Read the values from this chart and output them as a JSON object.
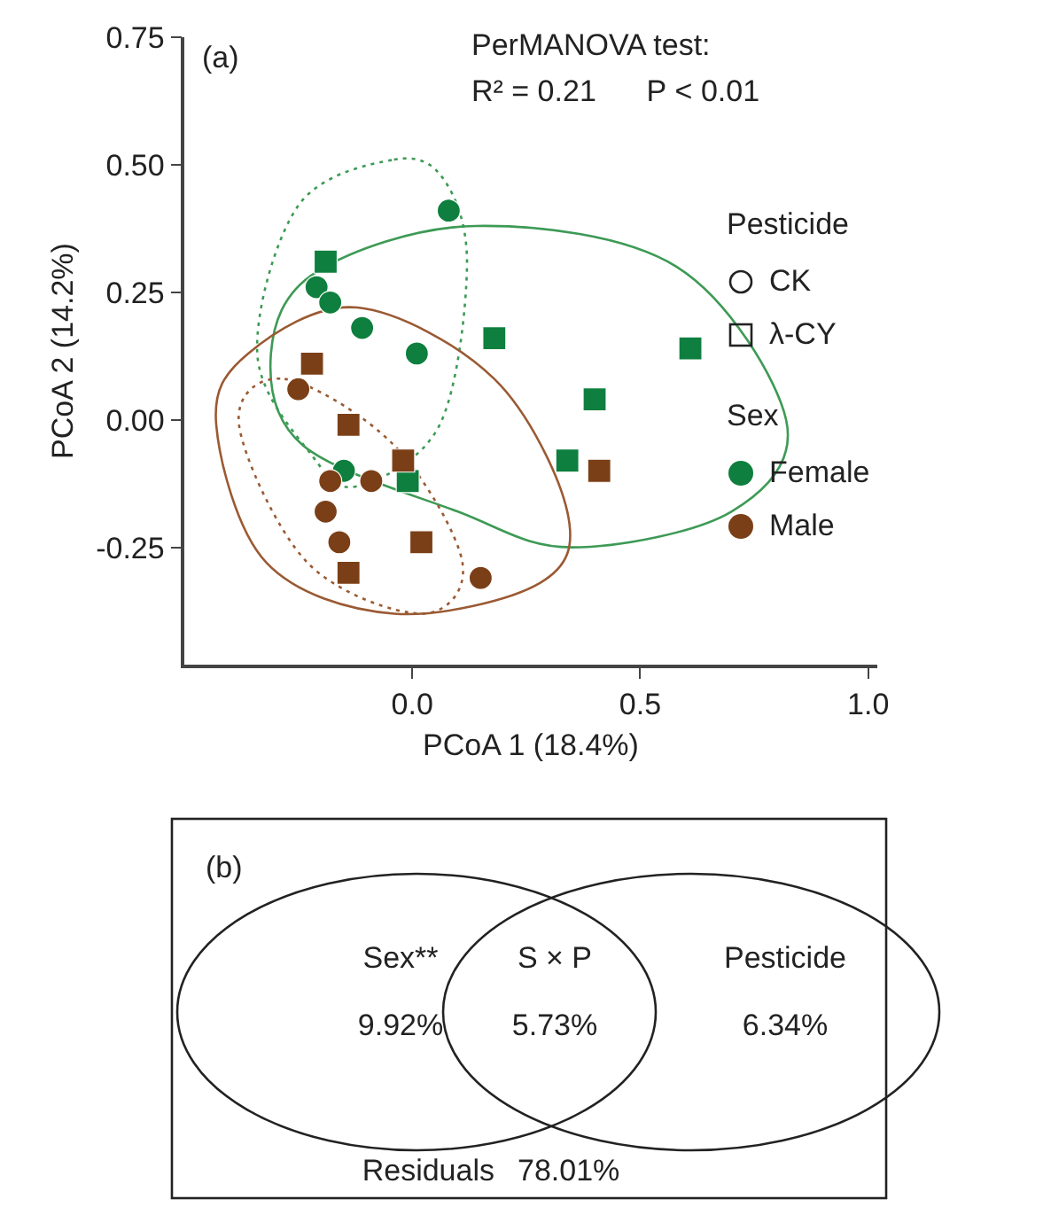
{
  "chart_data": [
    {
      "type": "scatter",
      "title": "(a)",
      "xlabel": "PCoA 1 (18.4%)",
      "ylabel": "PCoA 2 (14.2%)",
      "annotations": [
        "PerMANOVA test:",
        "R² = 0.21      P < 0.01",
        "Pesticide",
        "CK",
        "λ-CY",
        "Sex"
      ],
      "xlim": [
        -0.5,
        1.02
      ],
      "xticks": [
        {
          "value": 0,
          "label": "0.0"
        },
        {
          "value": 0.5,
          "label": "0.5"
        },
        {
          "value": 1,
          "label": "1.0"
        }
      ],
      "ylim": [
        -0.48,
        0.75
      ],
      "yticks": [
        {
          "value": -0.25,
          "label": "-0.25"
        },
        {
          "value": 0,
          "label": "0.00"
        },
        {
          "value": 0.25,
          "label": "0.25"
        },
        {
          "value": 0.5,
          "label": "0.50"
        },
        {
          "value": 0.75,
          "label": "0.75"
        }
      ],
      "grid": false,
      "legend": "right",
      "series": [
        {
          "name": "Female",
          "type": "scatter",
          "marker": "circle",
          "color": "#0e7f3e",
          "x": [
            0.08,
            -0.21,
            -0.18,
            -0.11,
            0.01,
            -0.15
          ],
          "values": [
            0.41,
            0.26,
            0.23,
            0.18,
            0.13,
            -0.1
          ]
        },
        {
          "type": "scatter",
          "marker": "square",
          "color": "#0e7f3e",
          "x": [
            -0.19,
            0.18,
            -0.01,
            0.4,
            0.34,
            0.61
          ],
          "values": [
            0.31,
            0.16,
            -0.12,
            0.04,
            -0.08,
            0.14
          ]
        },
        {
          "name": "Male",
          "type": "scatter",
          "marker": "circle",
          "color": "#7b3f17",
          "x": [
            -0.25,
            -0.18,
            -0.09,
            -0.19,
            -0.16,
            0.15
          ],
          "values": [
            0.06,
            -0.12,
            -0.12,
            -0.18,
            -0.24,
            -0.31
          ]
        },
        {
          "type": "scatter",
          "marker": "square",
          "color": "#7b3f17",
          "x": [
            -0.22,
            -0.14,
            -0.02,
            0.02,
            -0.14,
            0.41
          ],
          "values": [
            0.11,
            -0.01,
            -0.08,
            -0.24,
            -0.3,
            -0.1
          ]
        }
      ]
    },
    {
      "type": "other",
      "title": "(b)",
      "categories": [
        "Sex**",
        "S × P",
        "Pesticide",
        "Residuals"
      ],
      "values": [
        9.92,
        5.73,
        6.34,
        78.01
      ],
      "value_labels": [
        "9.92%",
        "5.73%",
        "6.34%",
        "78.01%"
      ]
    }
  ]
}
